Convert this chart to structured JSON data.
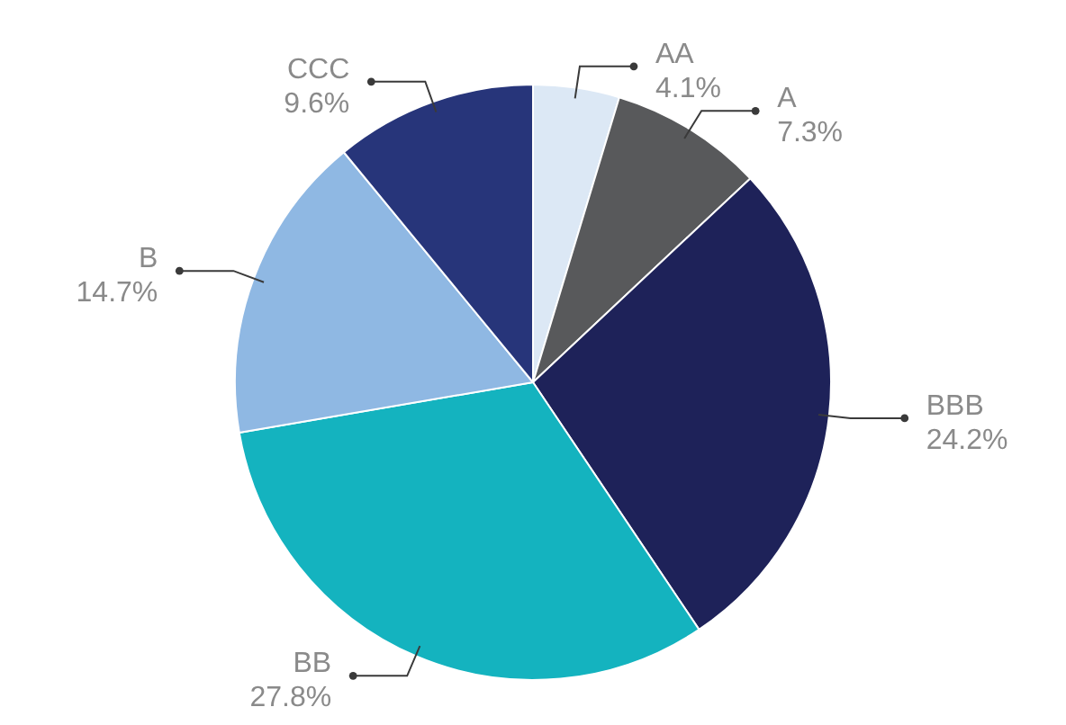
{
  "chart_data": {
    "type": "pie",
    "categories": [
      "AA",
      "A",
      "BBB",
      "BB",
      "B",
      "CCC"
    ],
    "values": [
      4.1,
      7.3,
      24.2,
      27.8,
      14.7,
      9.6
    ],
    "value_labels": [
      "4.1%",
      "7.3%",
      "24.2%",
      "27.8%",
      "14.7%",
      "9.6%"
    ],
    "colors": [
      "#dce8f5",
      "#58595b",
      "#1e2259",
      "#14b3bf",
      "#8fb8e3",
      "#27357a"
    ],
    "legend": false
  }
}
